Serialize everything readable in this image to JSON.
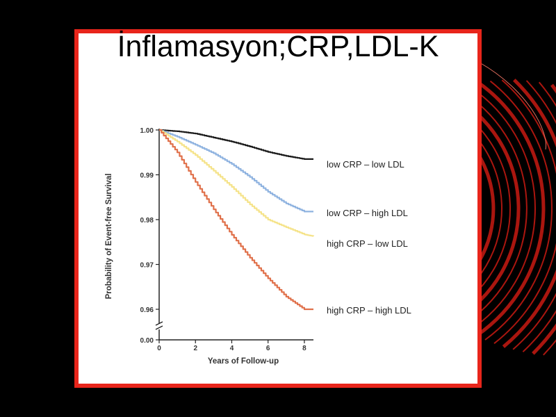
{
  "slide": {
    "title": "İnflamasyon;CRP,LDL-K",
    "colors": {
      "background": "#000000",
      "frame": "#e8251b",
      "card": "#ffffff",
      "decor": "#c81a12"
    }
  },
  "chart_data": {
    "type": "line",
    "title": "",
    "xlabel": "Years of Follow-up",
    "ylabel": "Probability of Event-free Survival",
    "x_ticks": [
      "0",
      "2",
      "4",
      "6",
      "8"
    ],
    "y_ticks": [
      "1.00",
      "0.99",
      "0.98",
      "0.97",
      "0.96",
      "0.00"
    ],
    "xlim": [
      0,
      8.5
    ],
    "ylim": [
      0.955,
      1.0
    ],
    "y_axis_break": true,
    "grid": false,
    "legend": "direct labels at line ends (right)",
    "series": [
      {
        "name": "low CRP – low LDL",
        "color": "#1a1a1a",
        "points": [
          [
            0,
            1.0
          ],
          [
            1,
            0.9997
          ],
          [
            2,
            0.9992
          ],
          [
            3,
            0.9983
          ],
          [
            4,
            0.9974
          ],
          [
            5,
            0.9963
          ],
          [
            6,
            0.9951
          ],
          [
            7,
            0.9942
          ],
          [
            8,
            0.9935
          ],
          [
            8.5,
            0.9935
          ]
        ]
      },
      {
        "name": "low CRP – high LDL",
        "color": "#8fb3e0",
        "points": [
          [
            0,
            1.0
          ],
          [
            1,
            0.9985
          ],
          [
            2,
            0.9967
          ],
          [
            3,
            0.9948
          ],
          [
            4,
            0.9924
          ],
          [
            5,
            0.9895
          ],
          [
            6,
            0.9862
          ],
          [
            7,
            0.9836
          ],
          [
            8,
            0.9818
          ],
          [
            8.5,
            0.9818
          ]
        ]
      },
      {
        "name": "high CRP – low LDL",
        "color": "#f5e38a",
        "points": [
          [
            0,
            1.0
          ],
          [
            1,
            0.9974
          ],
          [
            2,
            0.9944
          ],
          [
            3,
            0.9909
          ],
          [
            4,
            0.9873
          ],
          [
            5,
            0.9834
          ],
          [
            6,
            0.98
          ],
          [
            7,
            0.9783
          ],
          [
            8,
            0.9767
          ],
          [
            8.5,
            0.9763
          ]
        ]
      },
      {
        "name": "high CRP – high LDL",
        "color": "#e0704a",
        "points": [
          [
            0,
            1.0
          ],
          [
            1,
            0.995
          ],
          [
            2,
            0.9884
          ],
          [
            3,
            0.9823
          ],
          [
            4,
            0.9766
          ],
          [
            5,
            0.9715
          ],
          [
            6,
            0.9669
          ],
          [
            7,
            0.9628
          ],
          [
            8,
            0.96
          ],
          [
            8.5,
            0.96
          ]
        ]
      }
    ]
  }
}
